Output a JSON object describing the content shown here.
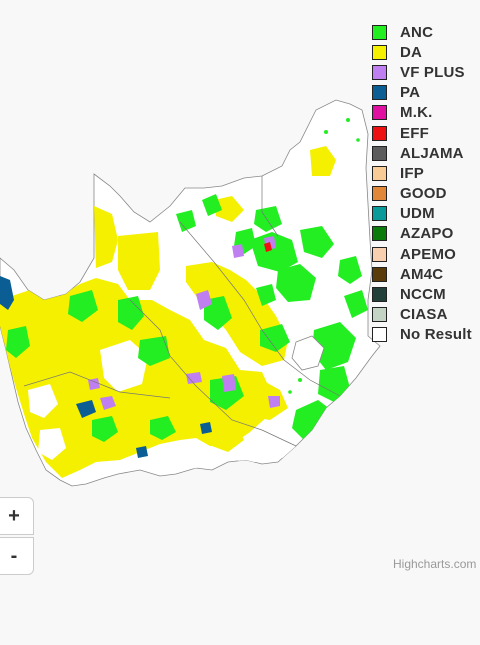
{
  "legend": {
    "items": [
      {
        "label": "ANC",
        "color": "#22ee22"
      },
      {
        "label": "DA",
        "color": "#f4f000"
      },
      {
        "label": "VF PLUS",
        "color": "#c07ff0"
      },
      {
        "label": "PA",
        "color": "#0a5e94"
      },
      {
        "label": "M.K.",
        "color": "#e010a0"
      },
      {
        "label": "EFF",
        "color": "#ee1111"
      },
      {
        "label": "ALJAMA",
        "color": "#5c5c5c"
      },
      {
        "label": "IFP",
        "color": "#f8cc96"
      },
      {
        "label": "GOOD",
        "color": "#e08838"
      },
      {
        "label": "UDM",
        "color": "#0a9a9a"
      },
      {
        "label": "AZAPO",
        "color": "#0a7a0a"
      },
      {
        "label": "APEMO",
        "color": "#f8d0b0"
      },
      {
        "label": "AM4C",
        "color": "#5a3c0a"
      },
      {
        "label": "NCCM",
        "color": "#24403a"
      },
      {
        "label": "CIASA",
        "color": "#c4d4c4"
      },
      {
        "label": "No Result",
        "color": "#ffffff"
      }
    ]
  },
  "zoom": {
    "in_label": "+",
    "out_label": "-"
  },
  "credits": "Highcharts.com",
  "map_colors": {
    "land": "#ffffff",
    "border": "#888888",
    "anc": "#22ee22",
    "da": "#f4f000",
    "vfplus": "#c07ff0",
    "pa": "#0a5e94",
    "eff": "#ee1111"
  }
}
